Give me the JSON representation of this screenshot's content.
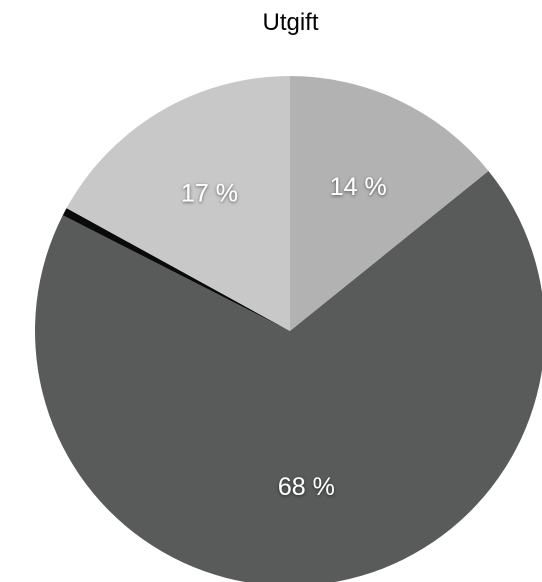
{
  "chart_data": {
    "type": "pie",
    "title": "Utgift",
    "slices": [
      {
        "label": "14 %",
        "value": 14.2,
        "color": "#b2b2b2",
        "show_label": true
      },
      {
        "label": "68 %",
        "value": 68.3,
        "color": "#585b5a",
        "show_label": true
      },
      {
        "label": "",
        "value": 0.5,
        "color": "#0a0a0a",
        "show_label": false
      },
      {
        "label": "17 %",
        "value": 17.0,
        "color": "#c8c8c8",
        "show_label": true
      }
    ],
    "start": "top",
    "direction": "clockwise"
  }
}
